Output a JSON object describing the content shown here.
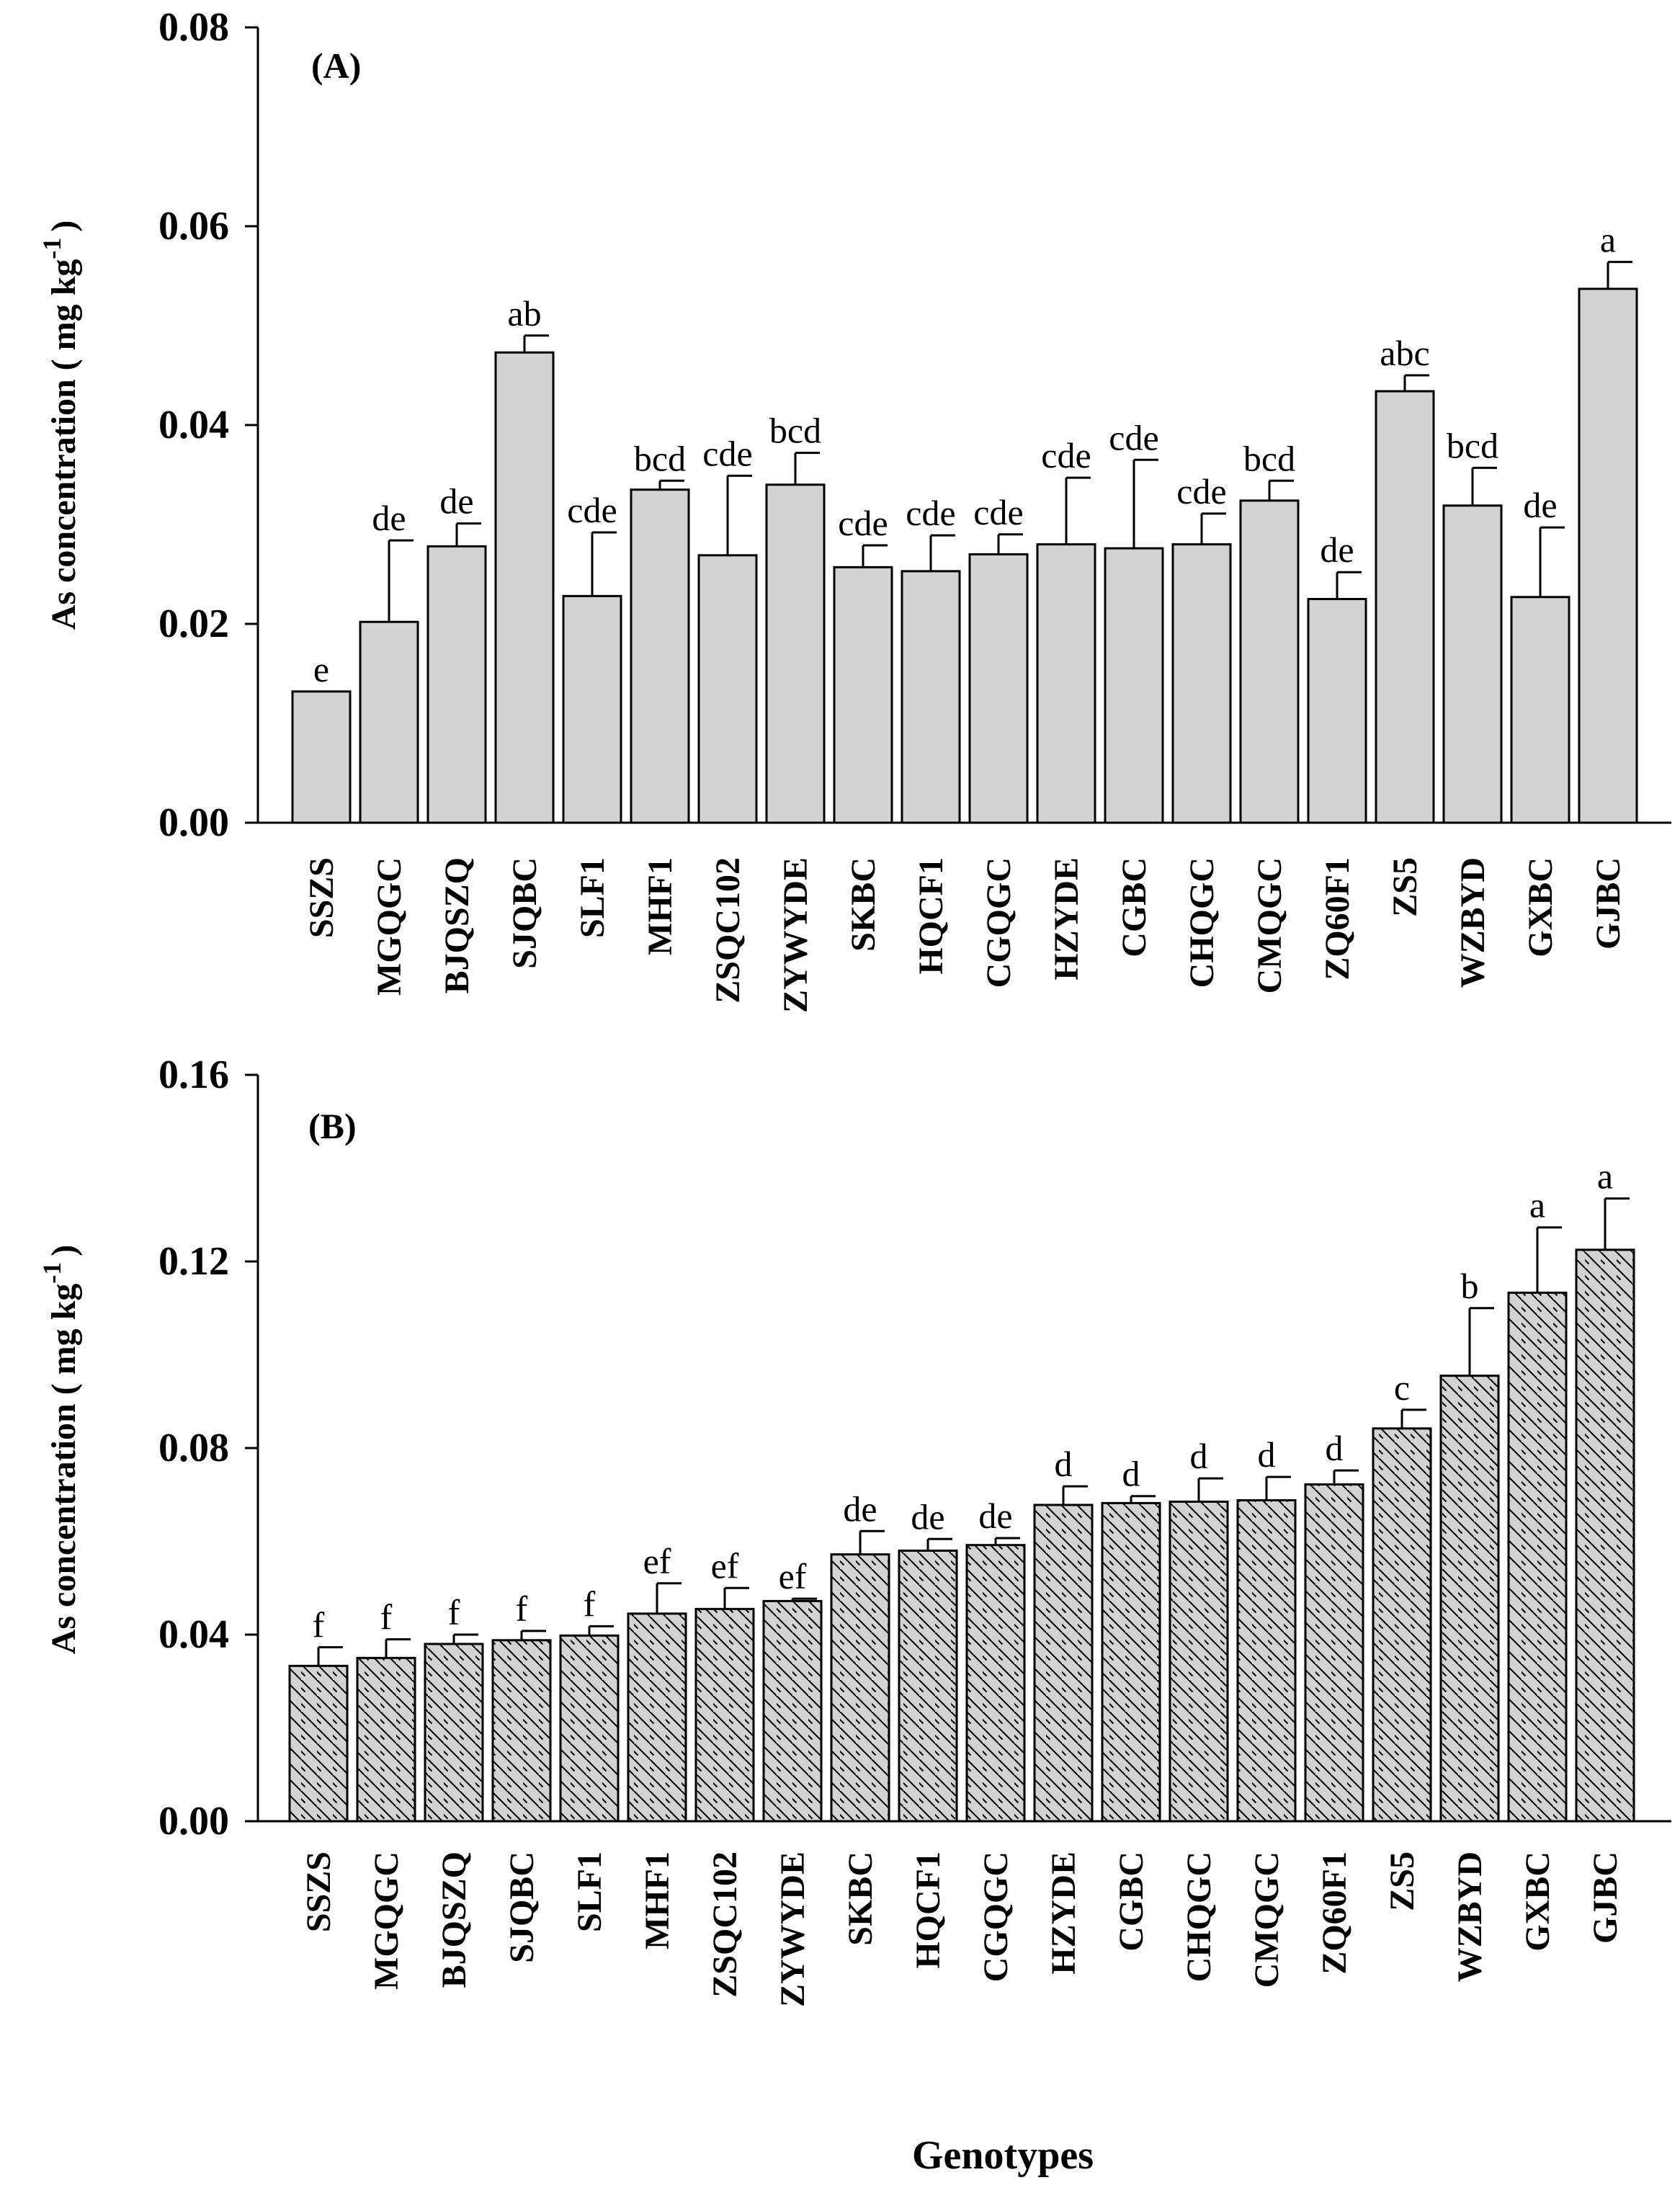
{
  "chart_data": [
    {
      "type": "bar",
      "panel_label": "(A)",
      "ylabel": "As concentration ( mg kg",
      "ylabel_superscript": "-1",
      "ylabel_close": ")",
      "ylim": [
        0,
        0.08
      ],
      "yticks": [
        "0.00",
        "0.02",
        "0.04",
        "0.06",
        "0.08"
      ],
      "ytick_values": [
        0,
        0.02,
        0.04,
        0.06,
        0.08
      ],
      "fill": "#d3d3d3",
      "hatch": false,
      "categories": [
        "SSZS",
        "MGQGC",
        "BJQSZQ",
        "SJQBC",
        "SLF1",
        "MHF1",
        "ZSQC102",
        "ZYWYDE",
        "SKBC",
        "HQCF1",
        "CGQGC",
        "HZYDE",
        "CGBC",
        "CHQGC",
        "CMQGC",
        "ZQ60F1",
        "ZS5",
        "WZBYD",
        "GXBC",
        "GJBC"
      ],
      "values": [
        0.0132,
        0.0202,
        0.0278,
        0.0473,
        0.0228,
        0.0335,
        0.0269,
        0.034,
        0.0257,
        0.0253,
        0.027,
        0.028,
        0.0276,
        0.028,
        0.0324,
        0.0225,
        0.0434,
        0.0319,
        0.0227,
        0.0537
      ],
      "errors": [
        0.0,
        0.0082,
        0.0023,
        0.0017,
        0.0064,
        0.0009,
        0.008,
        0.0032,
        0.0022,
        0.0036,
        0.002,
        0.0067,
        0.0089,
        0.0031,
        0.002,
        0.0027,
        0.0016,
        0.0038,
        0.007,
        0.0027
      ],
      "letters": [
        "e",
        "de",
        "de",
        "ab",
        "cde",
        "bcd",
        "cde",
        "bcd",
        "cde",
        "cde",
        "cde",
        "cde",
        "cde",
        "cde",
        "bcd",
        "de",
        "abc",
        "bcd",
        "de",
        "a"
      ]
    },
    {
      "type": "bar",
      "panel_label": "(B)",
      "ylabel": "As concentration ( mg kg",
      "ylabel_superscript": "-1",
      "ylabel_close": ")",
      "ylim": [
        0,
        0.16
      ],
      "yticks": [
        "0.00",
        "0.04",
        "0.08",
        "0.12",
        "0.16"
      ],
      "ytick_values": [
        0,
        0.04,
        0.08,
        0.12,
        0.16
      ],
      "fill": "#d3d3d3",
      "hatch": true,
      "xlabel": "Genotypes",
      "categories": [
        "SSZS",
        "MGQGC",
        "BJQSZQ",
        "SJQBC",
        "SLF1",
        "MHF1",
        "ZSQC102",
        "ZYWYDE",
        "SKBC",
        "HQCF1",
        "CGQGC",
        "HZYDE",
        "CGBC",
        "CHQGC",
        "CMQGC",
        "ZQ60F1",
        "ZS5",
        "WZBYD",
        "GXBC",
        "GJBC"
      ],
      "values": [
        0.0333,
        0.035,
        0.038,
        0.0388,
        0.0398,
        0.0445,
        0.0455,
        0.0472,
        0.0572,
        0.058,
        0.0592,
        0.0678,
        0.0682,
        0.0685,
        0.0688,
        0.0722,
        0.0842,
        0.0955,
        0.1133,
        0.1225
      ],
      "errors": [
        0.004,
        0.004,
        0.002,
        0.002,
        0.002,
        0.0065,
        0.0045,
        0.0005,
        0.005,
        0.0025,
        0.0015,
        0.004,
        0.0015,
        0.005,
        0.005,
        0.003,
        0.004,
        0.0145,
        0.014,
        0.011
      ],
      "letters": [
        "f",
        "f",
        "f",
        "f",
        "f",
        "ef",
        "ef",
        "ef",
        "de",
        "de",
        "de",
        "d",
        "d",
        "d",
        "d",
        "d",
        "c",
        "b",
        "a",
        "a"
      ]
    }
  ]
}
